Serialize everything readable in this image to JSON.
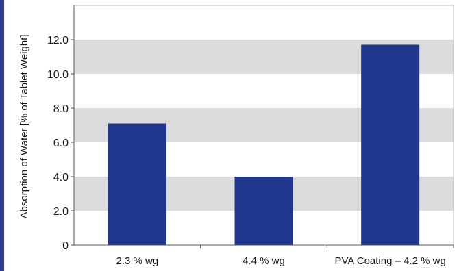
{
  "chart_data": {
    "type": "bar",
    "categories": [
      "2.3 % wg",
      "4.4 % wg",
      "PVA Coating – 4.2 % wg"
    ],
    "values": [
      7.1,
      4.0,
      11.7
    ],
    "title": "",
    "xlabel": "",
    "ylabel": "Absorption of Water  [% of Tablet Weight]",
    "ylim": [
      0,
      14
    ],
    "yticks": [
      "0",
      "2.0",
      "4.0",
      "6.0",
      "8.0",
      "10.0",
      "12.0"
    ],
    "grid": "alternating horizontal bands",
    "colors": {
      "bar": "#1f378c",
      "band": "#dcdcdd",
      "accent": "#2e3b8f"
    }
  }
}
